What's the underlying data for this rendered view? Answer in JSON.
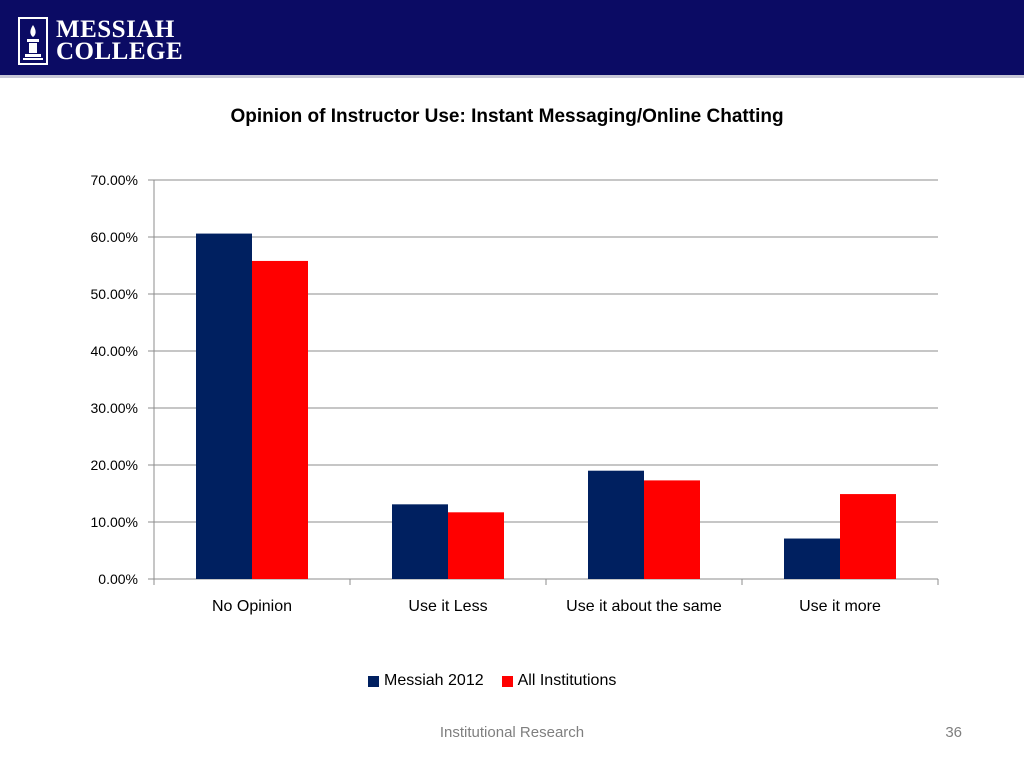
{
  "header": {
    "logo_line1": "MESSIAH",
    "logo_line2": "COLLEGE",
    "band_color": "#0b0b64"
  },
  "footer": {
    "label": "Institutional Research",
    "page_number": "36"
  },
  "chart_data": {
    "type": "bar",
    "title": "Opinion of Instructor Use: Instant Messaging/Online Chatting",
    "categories": [
      "No Opinion",
      "Use it Less",
      "Use it about the same",
      "Use it more"
    ],
    "series": [
      {
        "name": "Messiah 2012",
        "color": "#002060",
        "values": [
          60.6,
          13.1,
          19.0,
          7.1
        ]
      },
      {
        "name": "All Institutions",
        "color": "#ff0000",
        "values": [
          55.8,
          11.7,
          17.3,
          14.9
        ]
      }
    ],
    "yticks": [
      "0.00%",
      "10.00%",
      "20.00%",
      "30.00%",
      "40.00%",
      "50.00%",
      "60.00%",
      "70.00%"
    ],
    "ylim": [
      0,
      70
    ],
    "grid": true,
    "legend_position": "bottom"
  }
}
